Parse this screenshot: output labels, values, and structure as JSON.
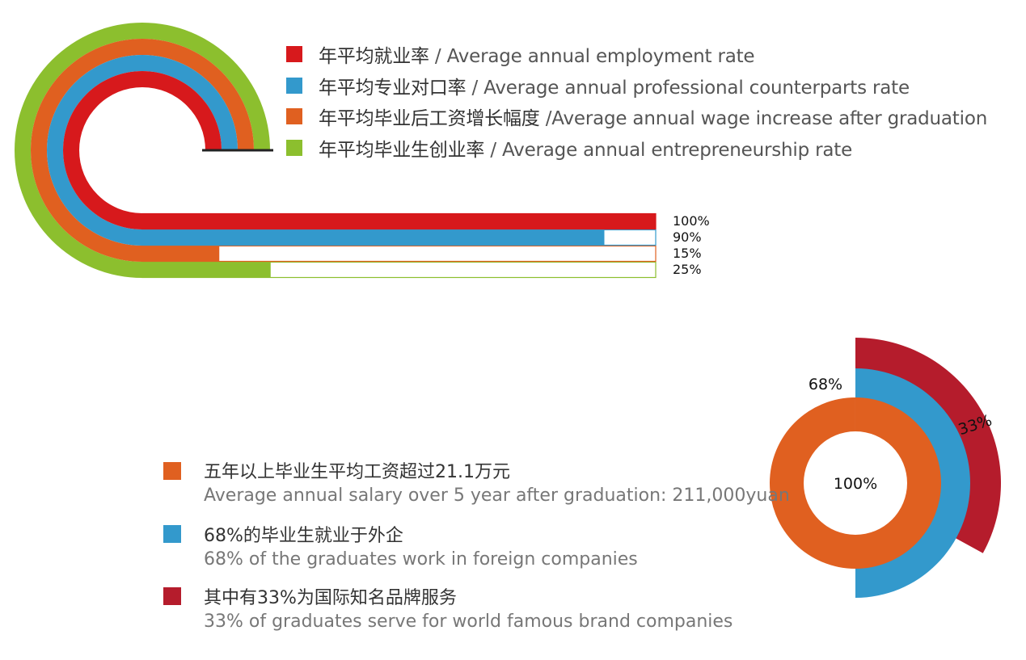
{
  "colors": {
    "employment": "#d7191c",
    "professional": "#3399cc",
    "wage": "#e06020",
    "entrepreneurship": "#8cbf2e",
    "brand": "#b51c2c"
  },
  "chart_data": [
    {
      "type": "bar",
      "categories": [
        "年平均就业率 / Average annual employment rate",
        "年平均专业对口率 / Average annual professional counterparts rate",
        "年平均毕业后工资增长幅度 /Average annual wage increase after graduation",
        "年平均毕业生创业率 / Average annual entrepreneurship rate"
      ],
      "series": [
        {
          "name": "年平均就业率 / Average annual employment rate",
          "value": 100,
          "label": "100%",
          "color": "#d7191c"
        },
        {
          "name": "年平均专业对口率 / Average annual professional counterparts rate",
          "value": 90,
          "label": "90%",
          "color": "#3399cc"
        },
        {
          "name": "年平均毕业后工资增长幅度 /Average annual wage increase after graduation",
          "value": 15,
          "label": "15%",
          "color": "#e06020"
        },
        {
          "name": "年平均毕业生创业率 / Average annual entrepreneurship rate",
          "value": 25,
          "label": "25%",
          "color": "#8cbf2e"
        }
      ],
      "ylim": [
        0,
        100
      ],
      "legend": "top-right"
    },
    {
      "type": "pie",
      "series": [
        {
          "name": "五年以上毕业生平均工资超过21.1万元",
          "value": 100,
          "label": "100%",
          "color": "#e06020"
        },
        {
          "name": "68%的毕业生就业于外企",
          "value": 68,
          "label": "68%",
          "color": "#3399cc"
        },
        {
          "name": "其中有33%为国际知名品牌服务",
          "value": 33,
          "label": "33%",
          "color": "#b51c2c"
        }
      ],
      "legend": "left"
    }
  ],
  "top_legend": [
    {
      "cn": "年平均就业率",
      "en": " / Average annual employment rate",
      "color": "#d7191c"
    },
    {
      "cn": "年平均专业对口率",
      "en": " / Average annual professional counterparts rate",
      "color": "#3399cc"
    },
    {
      "cn": "年平均毕业后工资增长幅度",
      "en": " /Average annual wage increase after graduation",
      "color": "#e06020"
    },
    {
      "cn": "年平均毕业生创业率",
      "en": " / Average annual entrepreneurship rate",
      "color": "#8cbf2e"
    }
  ],
  "bottom_legend": [
    {
      "cn": "五年以上毕业生平均工资超过21.1万元",
      "en": "Average annual salary over 5 year after graduation: 211,000yuan",
      "color": "#e06020"
    },
    {
      "cn": "68%的毕业生就业于外企",
      "en": "68% of the graduates work in foreign companies",
      "color": "#3399cc"
    },
    {
      "cn": "其中有33%为国际知名品牌服务",
      "en": "33% of graduates serve for world famous brand companies",
      "color": "#b51c2c"
    }
  ]
}
